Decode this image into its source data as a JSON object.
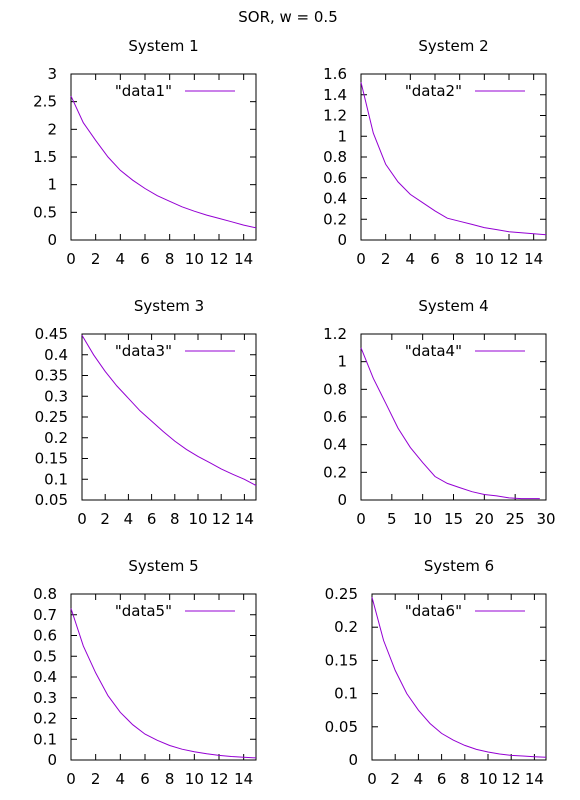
{
  "suptitle": "SOR, w = 0.5",
  "series_color": "#9400d3",
  "chart_data": [
    {
      "type": "line",
      "title": "System 1",
      "xlabel": "",
      "ylabel": "",
      "xlim": [
        0,
        15
      ],
      "ylim": [
        0,
        3
      ],
      "xticks": [
        0,
        2,
        4,
        6,
        8,
        10,
        12,
        14
      ],
      "xtick_labels": [
        "0",
        "2",
        "4",
        "6",
        "8",
        "10",
        "12",
        "14"
      ],
      "yticks": [
        0,
        0.5,
        1,
        1.5,
        2,
        2.5,
        3
      ],
      "ytick_labels": [
        "0",
        "0.5",
        "1",
        "1.5",
        "2",
        "2.5",
        "3"
      ],
      "grid": false,
      "legend": "top-right",
      "series": [
        {
          "name": "\"data1\"",
          "x": [
            0,
            1,
            2,
            3,
            4,
            5,
            6,
            7,
            8,
            9,
            10,
            11,
            12,
            13,
            14,
            15
          ],
          "y": [
            2.6,
            2.12,
            1.8,
            1.5,
            1.26,
            1.08,
            0.93,
            0.8,
            0.7,
            0.6,
            0.52,
            0.45,
            0.39,
            0.33,
            0.27,
            0.22
          ]
        }
      ]
    },
    {
      "type": "line",
      "title": "System 2",
      "xlabel": "",
      "ylabel": "",
      "xlim": [
        0,
        15
      ],
      "ylim": [
        0,
        1.6
      ],
      "xticks": [
        0,
        2,
        4,
        6,
        8,
        10,
        12,
        14
      ],
      "xtick_labels": [
        "0",
        "2",
        "4",
        "6",
        "8",
        "10",
        "12",
        "14"
      ],
      "yticks": [
        0,
        0.2,
        0.4,
        0.6,
        0.8,
        1,
        1.2,
        1.4,
        1.6
      ],
      "ytick_labels": [
        "0",
        "0.2",
        "0.4",
        "0.6",
        "0.8",
        "1",
        "1.2",
        "1.4",
        "1.6"
      ],
      "grid": false,
      "legend": "top-right",
      "series": [
        {
          "name": "\"data2\"",
          "x": [
            0,
            1,
            2,
            3,
            4,
            5,
            6,
            7,
            8,
            9,
            10,
            11,
            12,
            13,
            14,
            15
          ],
          "y": [
            1.52,
            1.03,
            0.73,
            0.56,
            0.44,
            0.36,
            0.28,
            0.21,
            0.18,
            0.15,
            0.12,
            0.1,
            0.08,
            0.07,
            0.06,
            0.05
          ]
        }
      ]
    },
    {
      "type": "line",
      "title": "System 3",
      "xlabel": "",
      "ylabel": "",
      "xlim": [
        0,
        15
      ],
      "ylim": [
        0.05,
        0.45
      ],
      "xticks": [
        0,
        2,
        4,
        6,
        8,
        10,
        12,
        14
      ],
      "xtick_labels": [
        "0",
        "2",
        "4",
        "6",
        "8",
        "10",
        "12",
        "14"
      ],
      "yticks": [
        0.05,
        0.1,
        0.15,
        0.2,
        0.25,
        0.3,
        0.35,
        0.4,
        0.45
      ],
      "ytick_labels": [
        "0.05",
        "0.1",
        "0.15",
        "0.2",
        "0.25",
        "0.3",
        "0.35",
        "0.4",
        "0.45"
      ],
      "grid": false,
      "legend": "top-right",
      "series": [
        {
          "name": "\"data3\"",
          "x": [
            0,
            1,
            2,
            3,
            4,
            5,
            6,
            7,
            8,
            9,
            10,
            11,
            12,
            13,
            14,
            15
          ],
          "y": [
            0.447,
            0.4,
            0.36,
            0.325,
            0.295,
            0.265,
            0.24,
            0.215,
            0.192,
            0.172,
            0.155,
            0.14,
            0.125,
            0.112,
            0.1,
            0.085
          ]
        }
      ]
    },
    {
      "type": "line",
      "title": "System 4",
      "xlabel": "",
      "ylabel": "",
      "xlim": [
        0,
        30
      ],
      "ylim": [
        0,
        1.2
      ],
      "xticks": [
        0,
        5,
        10,
        15,
        20,
        25,
        30
      ],
      "xtick_labels": [
        "0",
        "5",
        "10",
        "15",
        "20",
        "25",
        "30"
      ],
      "yticks": [
        0,
        0.2,
        0.4,
        0.6,
        0.8,
        1,
        1.2
      ],
      "ytick_labels": [
        "0",
        "0.2",
        "0.4",
        "0.6",
        "0.8",
        "1",
        "1.2"
      ],
      "grid": false,
      "legend": "top-right",
      "series": [
        {
          "name": "\"data4\"",
          "x": [
            0,
            2,
            4,
            6,
            8,
            10,
            12,
            14,
            16,
            18,
            20,
            22,
            24,
            26,
            28,
            29
          ],
          "y": [
            1.1,
            0.88,
            0.7,
            0.52,
            0.38,
            0.27,
            0.17,
            0.12,
            0.09,
            0.06,
            0.04,
            0.03,
            0.015,
            0.01,
            0.01,
            0.01
          ]
        }
      ]
    },
    {
      "type": "line",
      "title": "System 5",
      "xlabel": "",
      "ylabel": "",
      "xlim": [
        0,
        15
      ],
      "ylim": [
        0,
        0.8
      ],
      "xticks": [
        0,
        2,
        4,
        6,
        8,
        10,
        12,
        14
      ],
      "xtick_labels": [
        "0",
        "2",
        "4",
        "6",
        "8",
        "10",
        "12",
        "14"
      ],
      "yticks": [
        0,
        0.1,
        0.2,
        0.3,
        0.4,
        0.5,
        0.6,
        0.7,
        0.8
      ],
      "ytick_labels": [
        "0",
        "0.1",
        "0.2",
        "0.3",
        "0.4",
        "0.5",
        "0.6",
        "0.7",
        "0.8"
      ],
      "grid": false,
      "legend": "top-right",
      "series": [
        {
          "name": "\"data5\"",
          "x": [
            0,
            1,
            2,
            3,
            4,
            5,
            6,
            7,
            8,
            9,
            10,
            11,
            12,
            13,
            14,
            15
          ],
          "y": [
            0.73,
            0.55,
            0.42,
            0.31,
            0.23,
            0.17,
            0.125,
            0.095,
            0.07,
            0.052,
            0.04,
            0.03,
            0.022,
            0.017,
            0.013,
            0.01
          ]
        }
      ]
    },
    {
      "type": "line",
      "title": "System 6",
      "xlabel": "",
      "ylabel": "",
      "xlim": [
        0,
        15
      ],
      "ylim": [
        0,
        0.25
      ],
      "xticks": [
        0,
        2,
        4,
        6,
        8,
        10,
        12,
        14
      ],
      "xtick_labels": [
        "0",
        "2",
        "4",
        "6",
        "8",
        "10",
        "12",
        "14"
      ],
      "yticks": [
        0,
        0.05,
        0.1,
        0.15,
        0.2,
        0.25
      ],
      "ytick_labels": [
        "0",
        "0.05",
        "0.1",
        "0.15",
        "0.2",
        "0.25"
      ],
      "grid": false,
      "legend": "top-right",
      "series": [
        {
          "name": "\"data6\"",
          "x": [
            0,
            1,
            2,
            3,
            4,
            5,
            6,
            7,
            8,
            9,
            10,
            11,
            12,
            13,
            14,
            15
          ],
          "y": [
            0.245,
            0.18,
            0.135,
            0.1,
            0.075,
            0.055,
            0.04,
            0.03,
            0.022,
            0.016,
            0.012,
            0.009,
            0.007,
            0.006,
            0.005,
            0.004
          ]
        }
      ]
    }
  ]
}
